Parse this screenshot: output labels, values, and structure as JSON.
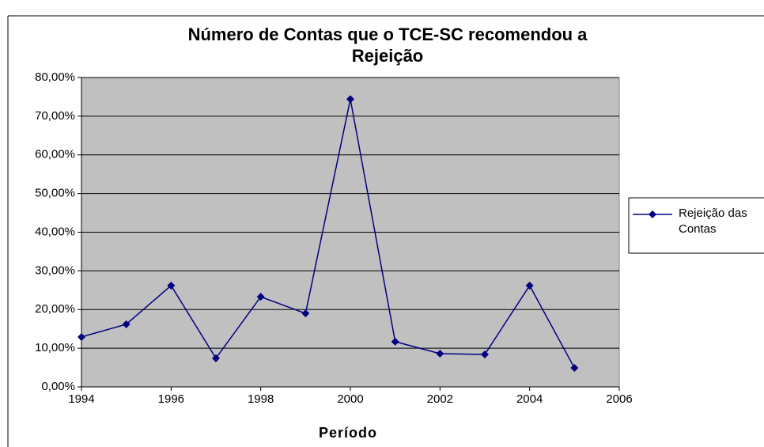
{
  "chart_data": {
    "type": "line",
    "title": "Número de Contas que o TCE-SC recomendou a Rejeição",
    "x_label": "Período",
    "x": [
      1994,
      1995,
      1996,
      1997,
      1998,
      1999,
      2000,
      2001,
      2002,
      2003,
      2004,
      2005
    ],
    "series": [
      {
        "name": "Rejeição das Contas",
        "color": "#000080",
        "values": [
          12.9,
          16.2,
          26.2,
          7.4,
          23.3,
          19.0,
          74.4,
          11.7,
          8.6,
          8.4,
          26.2,
          4.9
        ]
      }
    ],
    "xlim": [
      1994,
      2006
    ],
    "xticks": [
      1994,
      1996,
      1998,
      2000,
      2002,
      2004,
      2006
    ],
    "ylim": [
      0,
      80
    ],
    "yticks": [
      {
        "value": 0,
        "label": "0,00%"
      },
      {
        "value": 10,
        "label": "10,00%"
      },
      {
        "value": 20,
        "label": "20,00%"
      },
      {
        "value": 30,
        "label": "30,00%"
      },
      {
        "value": 40,
        "label": "40,00%"
      },
      {
        "value": 50,
        "label": "50,00%"
      },
      {
        "value": 60,
        "label": "60,00%"
      },
      {
        "value": 70,
        "label": "70,00%"
      },
      {
        "value": 80,
        "label": "80,00%"
      }
    ],
    "grid": true,
    "legend": "right",
    "plot_background": "#c0c0c0"
  }
}
